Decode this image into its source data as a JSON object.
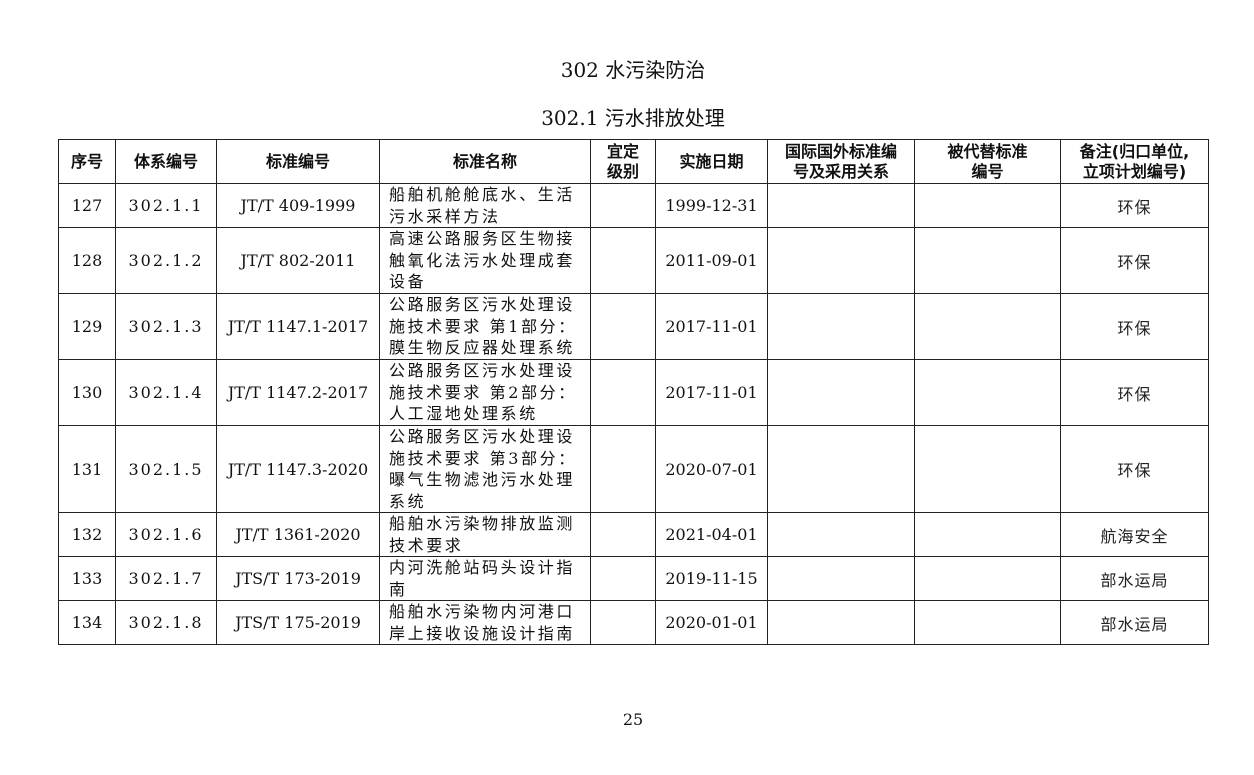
{
  "section_title": "302  水污染防治",
  "subsection_title": "302.1  污水排放处理",
  "table": {
    "headers": [
      "序号",
      "体系编号",
      "标准编号",
      "标准名称",
      "宜定\n级别",
      "实施日期",
      "国际国外标准编\n号及采用关系",
      "被代替标准\n编号",
      "备注(归口单位,\n立项计划编号)"
    ],
    "rows": [
      {
        "seq": "127",
        "system_no": "302.1.1",
        "standard_no": "JT/T 409-1999",
        "name_lines": [
          "船舶机舱舱底水、生活",
          "污水采样方法"
        ],
        "level": "",
        "date": "1999-12-31",
        "intl": "",
        "replaced": "",
        "note": "环保"
      },
      {
        "seq": "128",
        "system_no": "302.1.2",
        "standard_no": "JT/T 802-2011",
        "name_lines": [
          "高速公路服务区生物接",
          "触氧化法污水处理成套",
          "设备"
        ],
        "level": "",
        "date": "2011-09-01",
        "intl": "",
        "replaced": "",
        "note": "环保"
      },
      {
        "seq": "129",
        "system_no": "302.1.3",
        "standard_no": "JT/T 1147.1-2017",
        "name_lines": [
          "公路服务区污水处理设",
          "施技术要求 第1部分：",
          "膜生物反应器处理系统"
        ],
        "level": "",
        "date": "2017-11-01",
        "intl": "",
        "replaced": "",
        "note": "环保"
      },
      {
        "seq": "130",
        "system_no": "302.1.4",
        "standard_no": "JT/T 1147.2-2017",
        "name_lines": [
          "公路服务区污水处理设",
          "施技术要求 第2部分：",
          "人工湿地处理系统"
        ],
        "level": "",
        "date": "2017-11-01",
        "intl": "",
        "replaced": "",
        "note": "环保"
      },
      {
        "seq": "131",
        "system_no": "302.1.5",
        "standard_no": "JT/T 1147.3-2020",
        "name_lines": [
          "公路服务区污水处理设",
          "施技术要求 第3部分：",
          "曝气生物滤池污水处理",
          "系统"
        ],
        "level": "",
        "date": "2020-07-01",
        "intl": "",
        "replaced": "",
        "note": "环保"
      },
      {
        "seq": "132",
        "system_no": "302.1.6",
        "standard_no": "JT/T 1361-2020",
        "name_lines": [
          "船舶水污染物排放监测",
          "技术要求"
        ],
        "level": "",
        "date": "2021-04-01",
        "intl": "",
        "replaced": "",
        "note": "航海安全"
      },
      {
        "seq": "133",
        "system_no": "302.1.7",
        "standard_no": "JTS/T 173-2019",
        "name_lines": [
          "内河洗舱站码头设计指",
          "南"
        ],
        "level": "",
        "date": "2019-11-15",
        "intl": "",
        "replaced": "",
        "note": "部水运局"
      },
      {
        "seq": "134",
        "system_no": "302.1.8",
        "standard_no": "JTS/T 175-2019",
        "name_lines": [
          "船舶水污染物内河港口",
          "岸上接收设施设计指南"
        ],
        "level": "",
        "date": "2020-01-01",
        "intl": "",
        "replaced": "",
        "note": "部水运局"
      }
    ]
  },
  "page_number": "25"
}
